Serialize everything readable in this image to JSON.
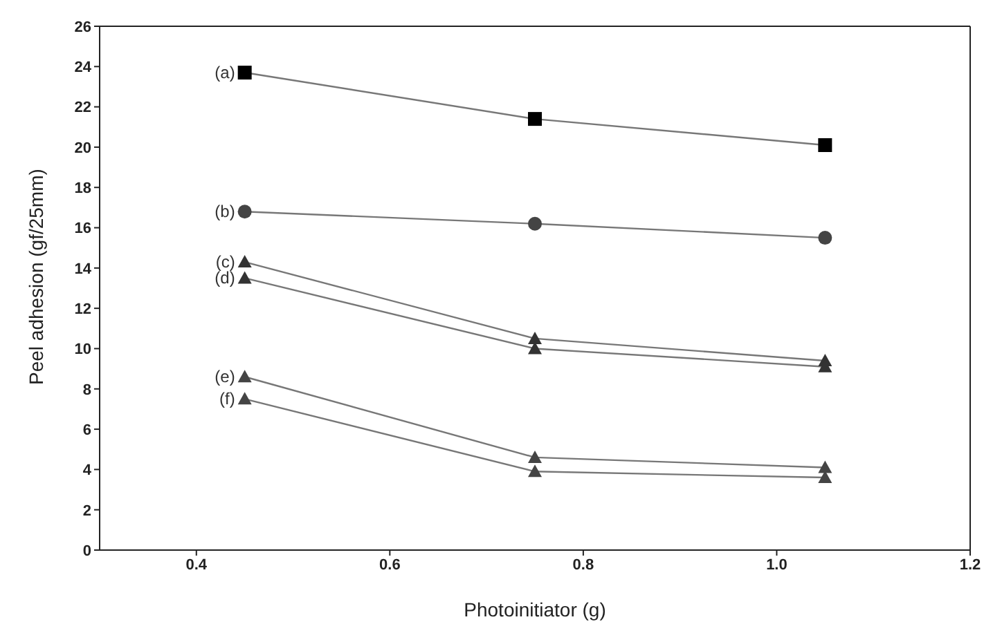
{
  "chart_data": {
    "type": "line",
    "xlabel": "Photoinitiator (g)",
    "ylabel": "Peel adhesion (gf/25mm)",
    "x": [
      0.45,
      0.75,
      1.05
    ],
    "series": [
      {
        "name": "(a)",
        "color": "#000000",
        "marker": "square",
        "values": [
          23.7,
          21.4,
          20.1
        ]
      },
      {
        "name": "(b)",
        "color": "#444444",
        "marker": "circle",
        "values": [
          16.8,
          16.2,
          15.5
        ]
      },
      {
        "name": "(c)",
        "color": "#333333",
        "marker": "triangle",
        "values": [
          14.3,
          10.5,
          9.4
        ]
      },
      {
        "name": "(d)",
        "color": "#333333",
        "marker": "triangle",
        "values": [
          13.5,
          10.0,
          9.1
        ]
      },
      {
        "name": "(e)",
        "color": "#444444",
        "marker": "triangle",
        "values": [
          8.6,
          4.6,
          4.1
        ]
      },
      {
        "name": "(f)",
        "color": "#444444",
        "marker": "triangle",
        "values": [
          7.5,
          3.9,
          3.6
        ]
      }
    ],
    "xlim": [
      0.3,
      1.2
    ],
    "xticks": [
      0.4,
      0.6,
      0.8,
      {
        "value": 1.0,
        "label": "1.0"
      },
      1.2
    ],
    "ylim": [
      0,
      26
    ],
    "yticks": [
      0,
      2,
      4,
      6,
      8,
      10,
      12,
      14,
      16,
      18,
      20,
      22,
      24,
      26
    ],
    "legend": false
  }
}
